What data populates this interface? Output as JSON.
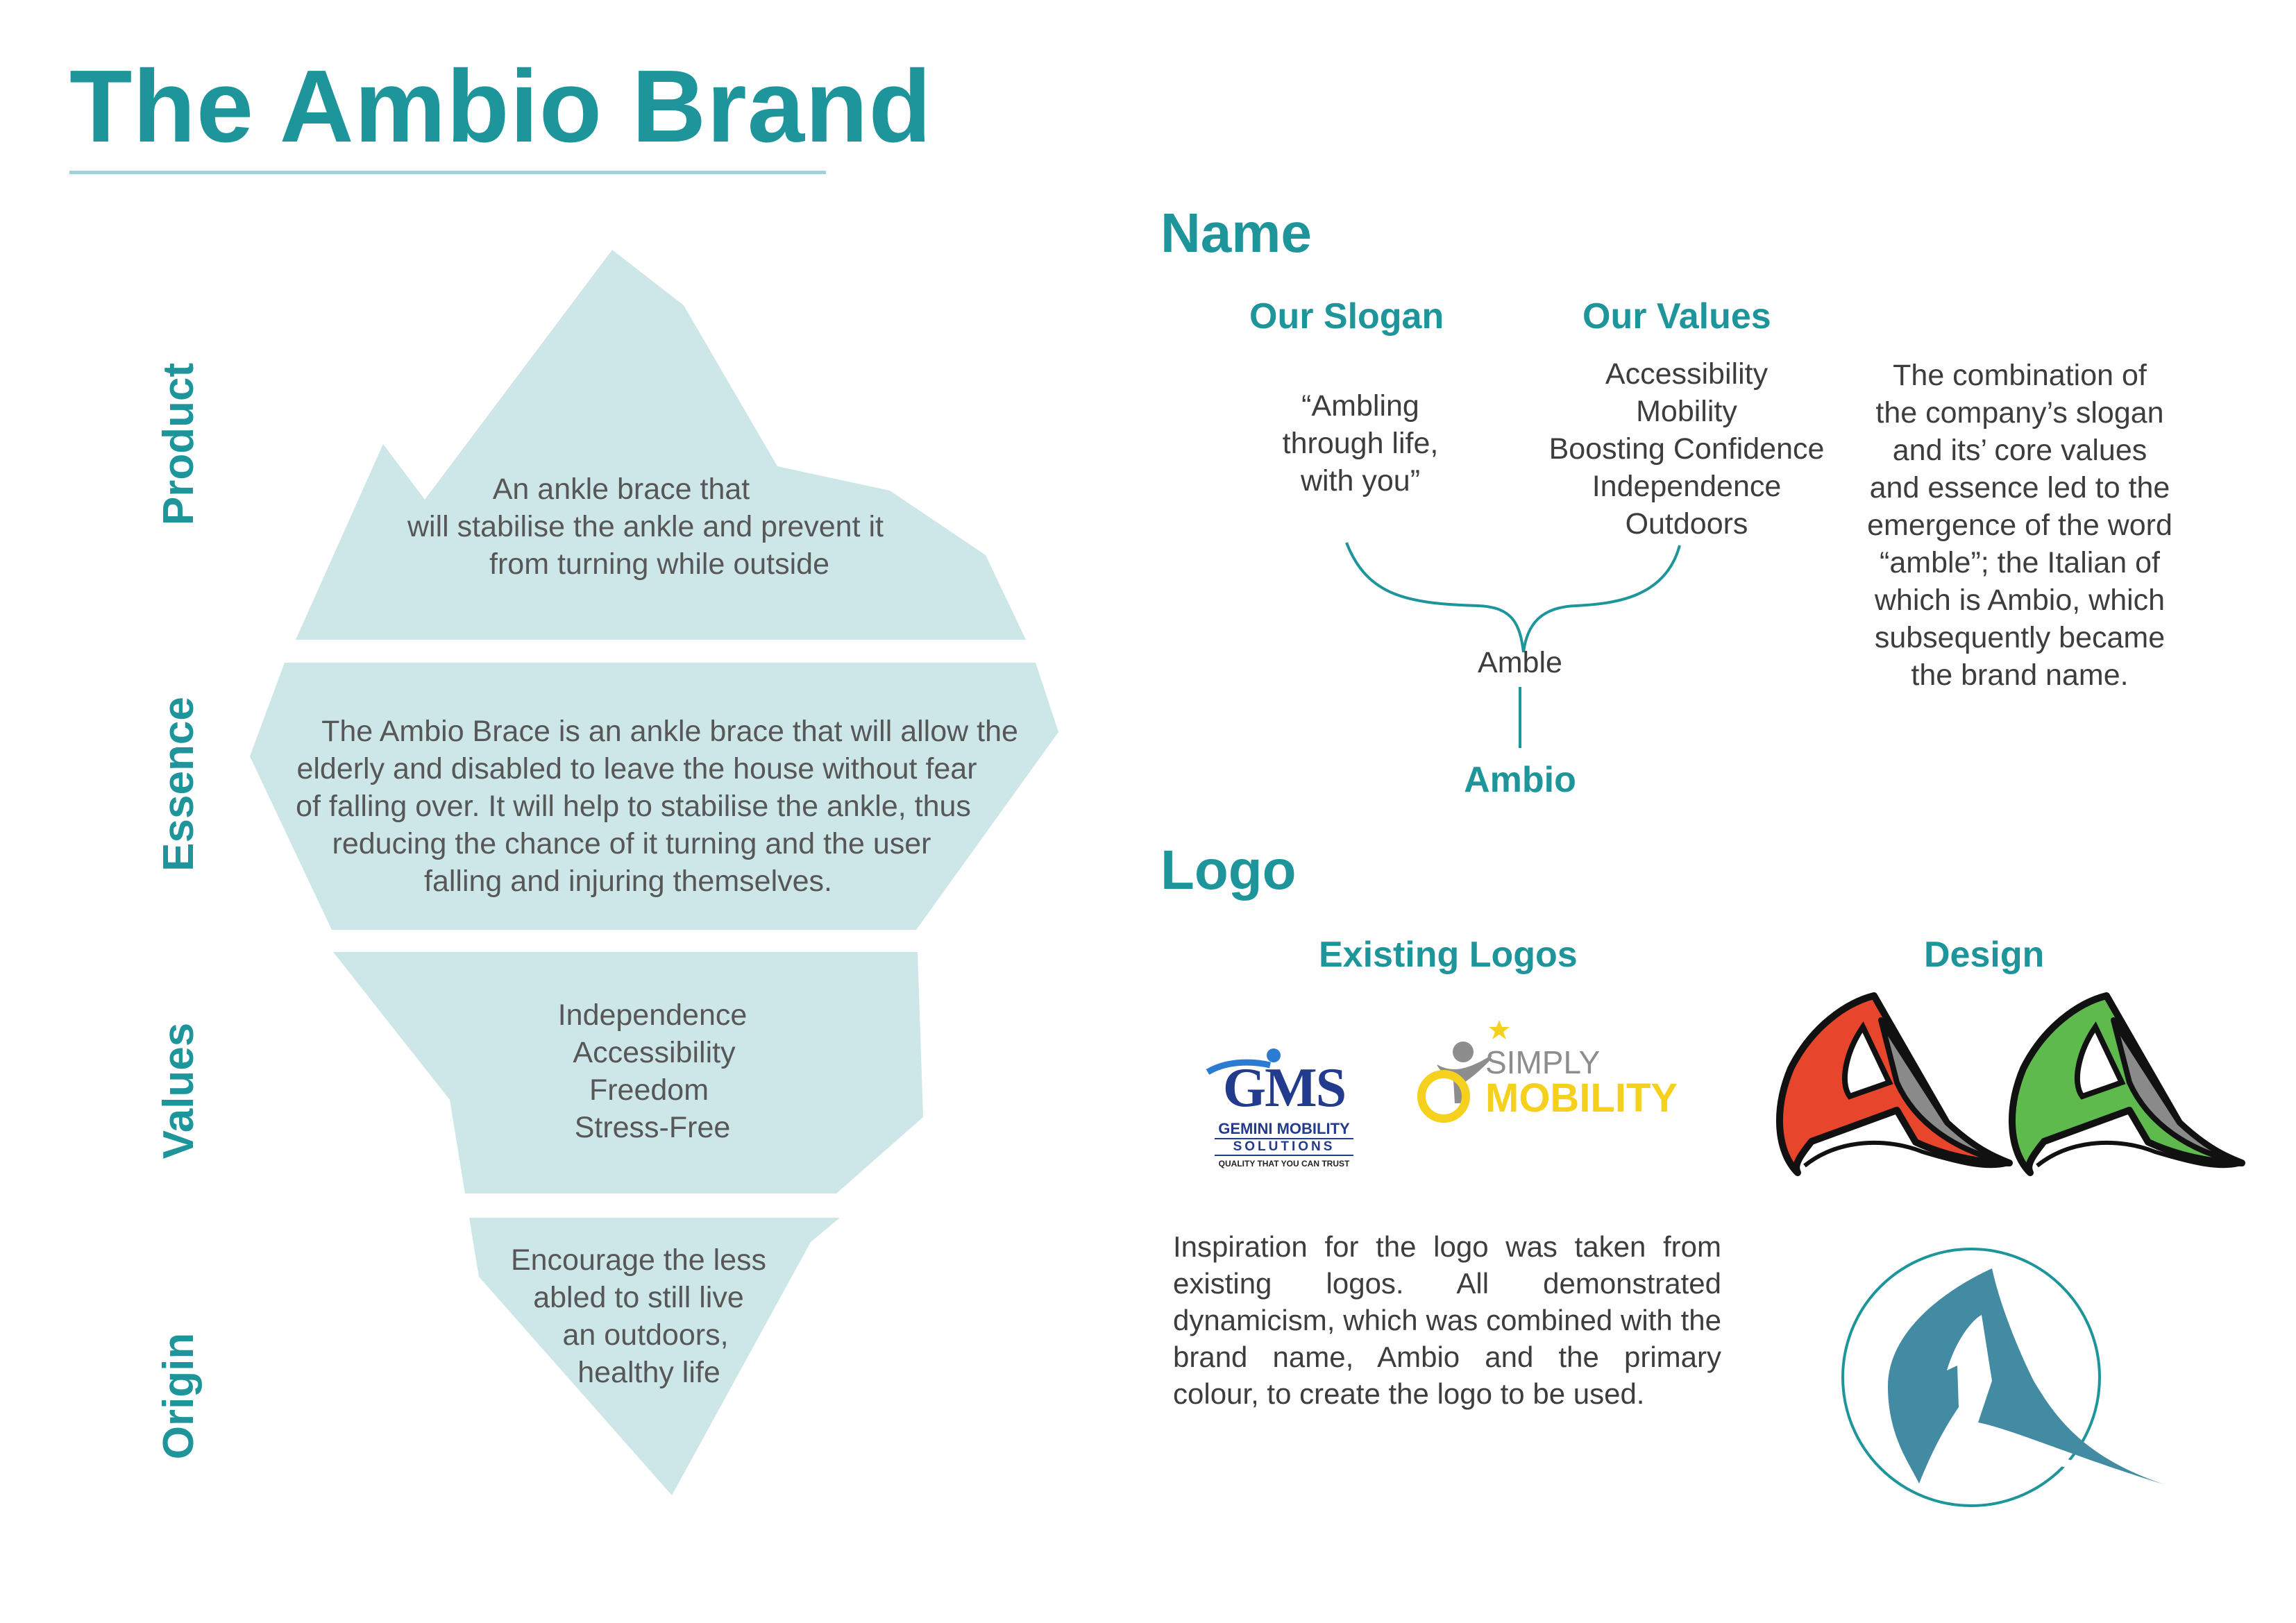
{
  "title": "The Ambio Brand",
  "iceberg": {
    "labels": {
      "product": "Product",
      "essence": "Essence",
      "values": "Values",
      "origin": "Origin"
    },
    "product_lines": [
      "An ankle brace that",
      "will stabilise the ankle and prevent it",
      "from turning while outside"
    ],
    "essence_lines": [
      "The Ambio Brace is an ankle brace that will allow the",
      "elderly and disabled to leave the house without fear",
      "of falling over. It will help to stabilise the ankle, thus",
      "reducing the chance of it turning and the user",
      "falling and injuring themselves."
    ],
    "values_lines": [
      "Independence",
      "Accessibility",
      "Freedom",
      "Stress-Free"
    ],
    "origin_lines": [
      "Encourage the less",
      "abled to still live",
      "an outdoors,",
      "healthy life"
    ]
  },
  "name_section": {
    "heading": "Name",
    "slogan_heading": "Our Slogan",
    "slogan_lines": [
      "“Ambling",
      "through life,",
      "with you”"
    ],
    "values_heading": "Our Values",
    "values_lines": [
      "Accessibility",
      "Mobility",
      "Boosting Confidence",
      "Independence",
      "Outdoors"
    ],
    "explanation_lines": [
      "The combination of",
      "the company’s slogan",
      "and its’ core values",
      "and essence led to the",
      "emergence of the word",
      "“amble”; the Italian of",
      "which is Ambio, which",
      "subsequently became",
      "the brand name."
    ],
    "amble": "Amble",
    "ambio": "Ambio"
  },
  "logo_section": {
    "heading": "Logo",
    "existing_heading": "Existing Logos",
    "design_heading": "Design",
    "gms": {
      "letters": "GMS",
      "line1": "GEMINI MOBILITY",
      "line2": "SOLUTIONS",
      "tagline": "QUALITY THAT YOU CAN TRUST"
    },
    "simply": {
      "line1": "SIMPLY",
      "line2": "MOBILITY"
    },
    "inspiration": "Inspiration for the logo was taken from existing logos. All demonstrated dynamicism, which was combined with the brand name, Ambio and the primary colour, to create the logo to be used."
  },
  "colors": {
    "teal": "#1d959a",
    "ice": "#cde6e8",
    "logo_blue": "#428ba3",
    "red": "#e8452d",
    "green": "#5fba4e",
    "gray": "#8a8a8a",
    "gms_blue": "#233b8c",
    "simply_yellow": "#f5d01d"
  }
}
